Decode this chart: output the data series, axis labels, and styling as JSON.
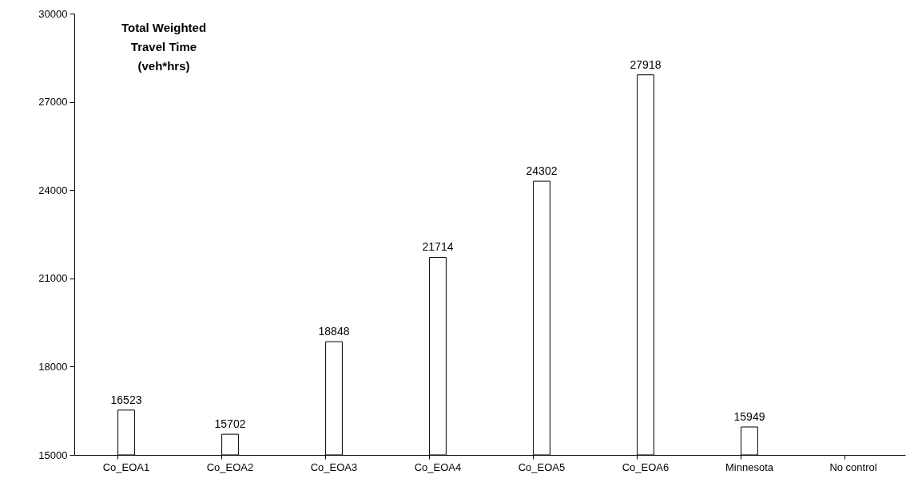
{
  "chart_data": {
    "type": "bar",
    "title": "Total Weighted Travel Time (veh*hrs)",
    "categories": [
      "Co_EOA1",
      "Co_EOA2",
      "Co_EOA3",
      "Co_EOA4",
      "Co_EOA5",
      "Co_EOA6",
      "Minnesota",
      "No control"
    ],
    "values": [
      16523,
      15702,
      18848,
      21714,
      24302,
      27918,
      15949,
      null
    ],
    "color": "#ffffff",
    "ylim": [
      15000,
      30000
    ],
    "yticks": [
      15000,
      18000,
      21000,
      24000,
      27000,
      30000
    ],
    "grid": false,
    "data_labels": true
  }
}
